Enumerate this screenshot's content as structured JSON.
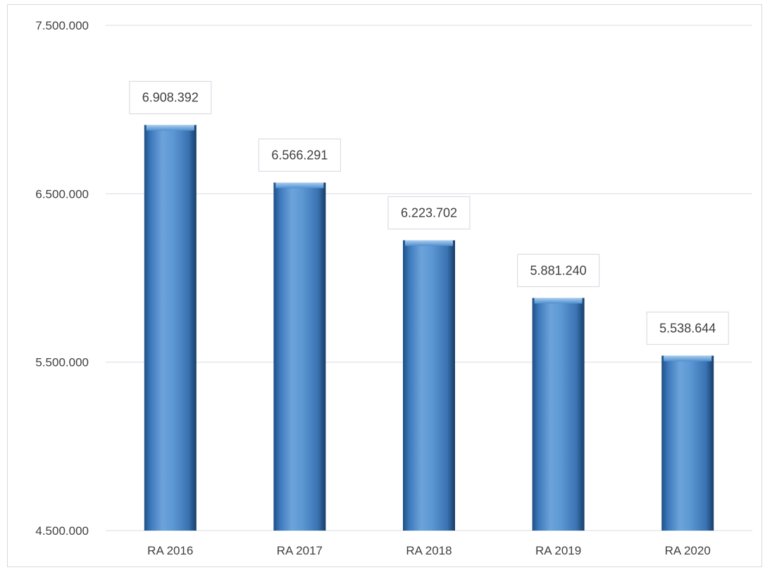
{
  "chart_data": {
    "type": "bar",
    "categories": [
      "RA 2016",
      "RA 2017",
      "RA 2018",
      "RA 2019",
      "RA 2020"
    ],
    "values": [
      6908392,
      6566291,
      6223702,
      5881240,
      5538644
    ],
    "data_labels": [
      "6.908.392",
      "6.566.291",
      "6.223.702",
      "5.881.240",
      "5.538.644"
    ],
    "ylim": [
      4500000,
      7500000
    ],
    "yticks": [
      4500000,
      5500000,
      6500000,
      7500000
    ],
    "ytick_labels": [
      "4.500.000",
      "5.500.000",
      "6.500.000",
      "7.500.000"
    ],
    "title": "",
    "xlabel": "",
    "ylabel": "",
    "grid": true,
    "legend": "none",
    "colors": {
      "bar_light": "#7fb0e0",
      "bar_mid": "#4f8fd0",
      "bar_dark": "#1f4f85",
      "gridline": "#d9dde3",
      "label_border": "#d9dde3"
    }
  }
}
